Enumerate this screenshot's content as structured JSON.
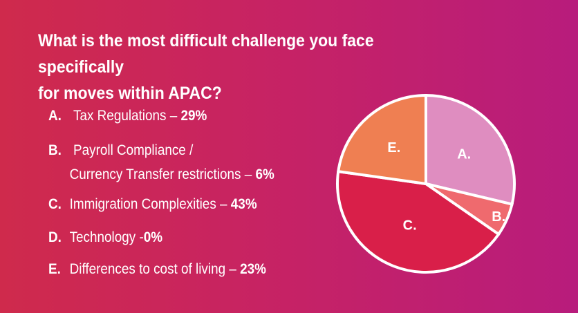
{
  "title_line1": "What is the most difficult challenge you face specifically",
  "title_line2": "for moves within APAC?",
  "chart_data": {
    "type": "pie",
    "title": "What is the most difficult challenge you face specifically for moves within APAC?",
    "slices": [
      {
        "letter": "A.",
        "label_line1": "Tax Regulations –",
        "label_line2": "",
        "value": 29,
        "value_text": "29%",
        "color": "#df8dc0",
        "chart_label": "A."
      },
      {
        "letter": "B.",
        "label_line1": "Payroll Compliance /",
        "label_line2": "Currency Transfer restrictions –",
        "value": 6,
        "value_text": "6%",
        "color": "#ef6a6e",
        "chart_label": "B."
      },
      {
        "letter": "C.",
        "label_line1": "Immigration Complexities –",
        "label_line2": "",
        "value": 43,
        "value_text": "43%",
        "color": "#d91f49",
        "chart_label": "C."
      },
      {
        "letter": "D.",
        "label_line1": "Technology  -",
        "label_line2": "",
        "value": 0,
        "value_text": "0%",
        "color": "#c72363",
        "chart_label": ""
      },
      {
        "letter": "E.",
        "label_line1": "Differences to cost of living –",
        "label_line2": "",
        "value": 23,
        "value_text": "23%",
        "color": "#ef7f52",
        "chart_label": "E."
      }
    ]
  }
}
